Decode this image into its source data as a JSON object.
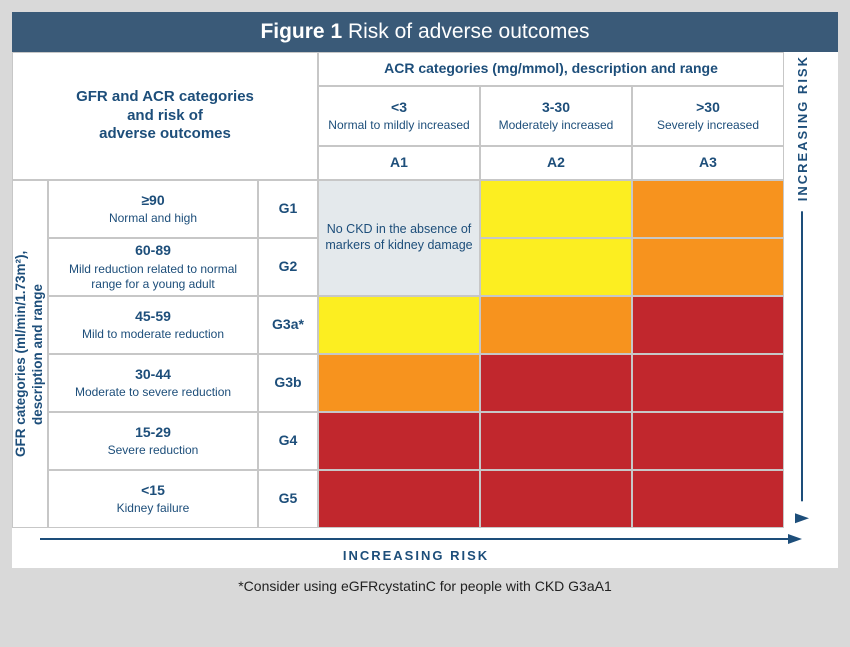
{
  "title_bold": "Figure 1",
  "title_light": " Risk of adverse outcomes",
  "corner_label_l1": "GFR and ACR categories",
  "corner_label_l2": "and risk of",
  "corner_label_l3": "adverse outcomes",
  "acr_header": "ACR categories (mg/mmol), description and range",
  "gfr_side_l1": "GFR categories (ml/min/1.73m²),",
  "gfr_side_l2": "description and range",
  "increasing_risk": "INCREASING RISK",
  "footnote": "*Consider using eGFRcystatinC for people with CKD G3aA1",
  "acr_cols": [
    {
      "range": "<3",
      "desc": "Normal to mildly increased",
      "code": "A1"
    },
    {
      "range": "3-30",
      "desc": "Moderately increased",
      "code": "A2"
    },
    {
      "range": ">30",
      "desc": "Severely increased",
      "code": "A3"
    }
  ],
  "gfr_rows": [
    {
      "range": "≥90",
      "desc": "Normal and high",
      "code": "G1"
    },
    {
      "range": "60-89",
      "desc": "Mild reduction related to normal range for a young adult",
      "code": "G2"
    },
    {
      "range": "45-59",
      "desc": "Mild to moderate reduction",
      "code": "G3a*"
    },
    {
      "range": "30-44",
      "desc": "Moderate to severe reduction",
      "code": "G3b"
    },
    {
      "range": "15-29",
      "desc": "Severe reduction",
      "code": "G4"
    },
    {
      "range": "<15",
      "desc": "Kidney failure",
      "code": "G5"
    }
  ],
  "green_note": "No CKD in the absence of markers of kidney damage",
  "risk_colors": {
    "green": "#e4e9ec",
    "yellow": "#fcee21",
    "orange": "#f7931e",
    "red": "#c1272d"
  },
  "risk_matrix": [
    [
      "green",
      "yellow",
      "orange"
    ],
    [
      "green",
      "yellow",
      "orange"
    ],
    [
      "yellow",
      "orange",
      "red"
    ],
    [
      "orange",
      "red",
      "red"
    ],
    [
      "red",
      "red",
      "red"
    ],
    [
      "red",
      "red",
      "red"
    ]
  ],
  "theme": {
    "title_bg": "#3a5a78",
    "text": "#1d4e7a",
    "outer_bg": "#d9d9d9",
    "border": "#c7c7c7"
  }
}
